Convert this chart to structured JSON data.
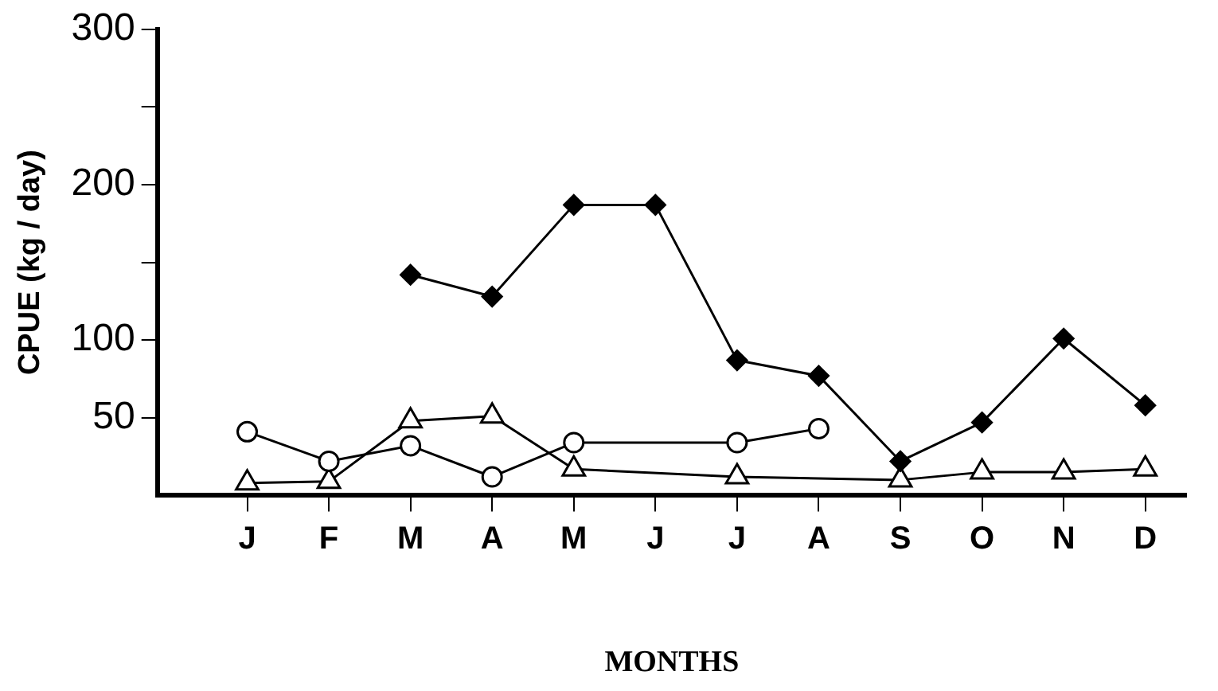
{
  "chart_data": {
    "type": "line",
    "xlabel": "MONTHS",
    "ylabel": "CPUE (kg / day)",
    "categories": [
      "J",
      "F",
      "M",
      "A",
      "M",
      "J",
      "J",
      "A",
      "S",
      "O",
      "N",
      "D"
    ],
    "ylim": [
      0,
      300
    ],
    "yticks": [
      50,
      100,
      {
        "value": 150,
        "label": null
      },
      200,
      {
        "value": 250,
        "label": null
      },
      300
    ],
    "grid": false,
    "legend": false,
    "line_style": "solid",
    "series": [
      {
        "color": "#000000",
        "marker": "diamond",
        "values": [
          null,
          null,
          142,
          128,
          187,
          187,
          87,
          77,
          22,
          47,
          101,
          58
        ]
      },
      {
        "color": "#000000",
        "marker": "circle",
        "values": [
          41,
          22,
          32,
          12,
          34,
          null,
          34,
          43,
          null,
          null,
          null,
          null
        ]
      },
      {
        "color": "#000000",
        "marker": "triangle",
        "values": [
          8,
          9,
          48,
          51,
          17,
          null,
          12,
          null,
          10,
          15,
          15,
          17
        ]
      }
    ]
  }
}
